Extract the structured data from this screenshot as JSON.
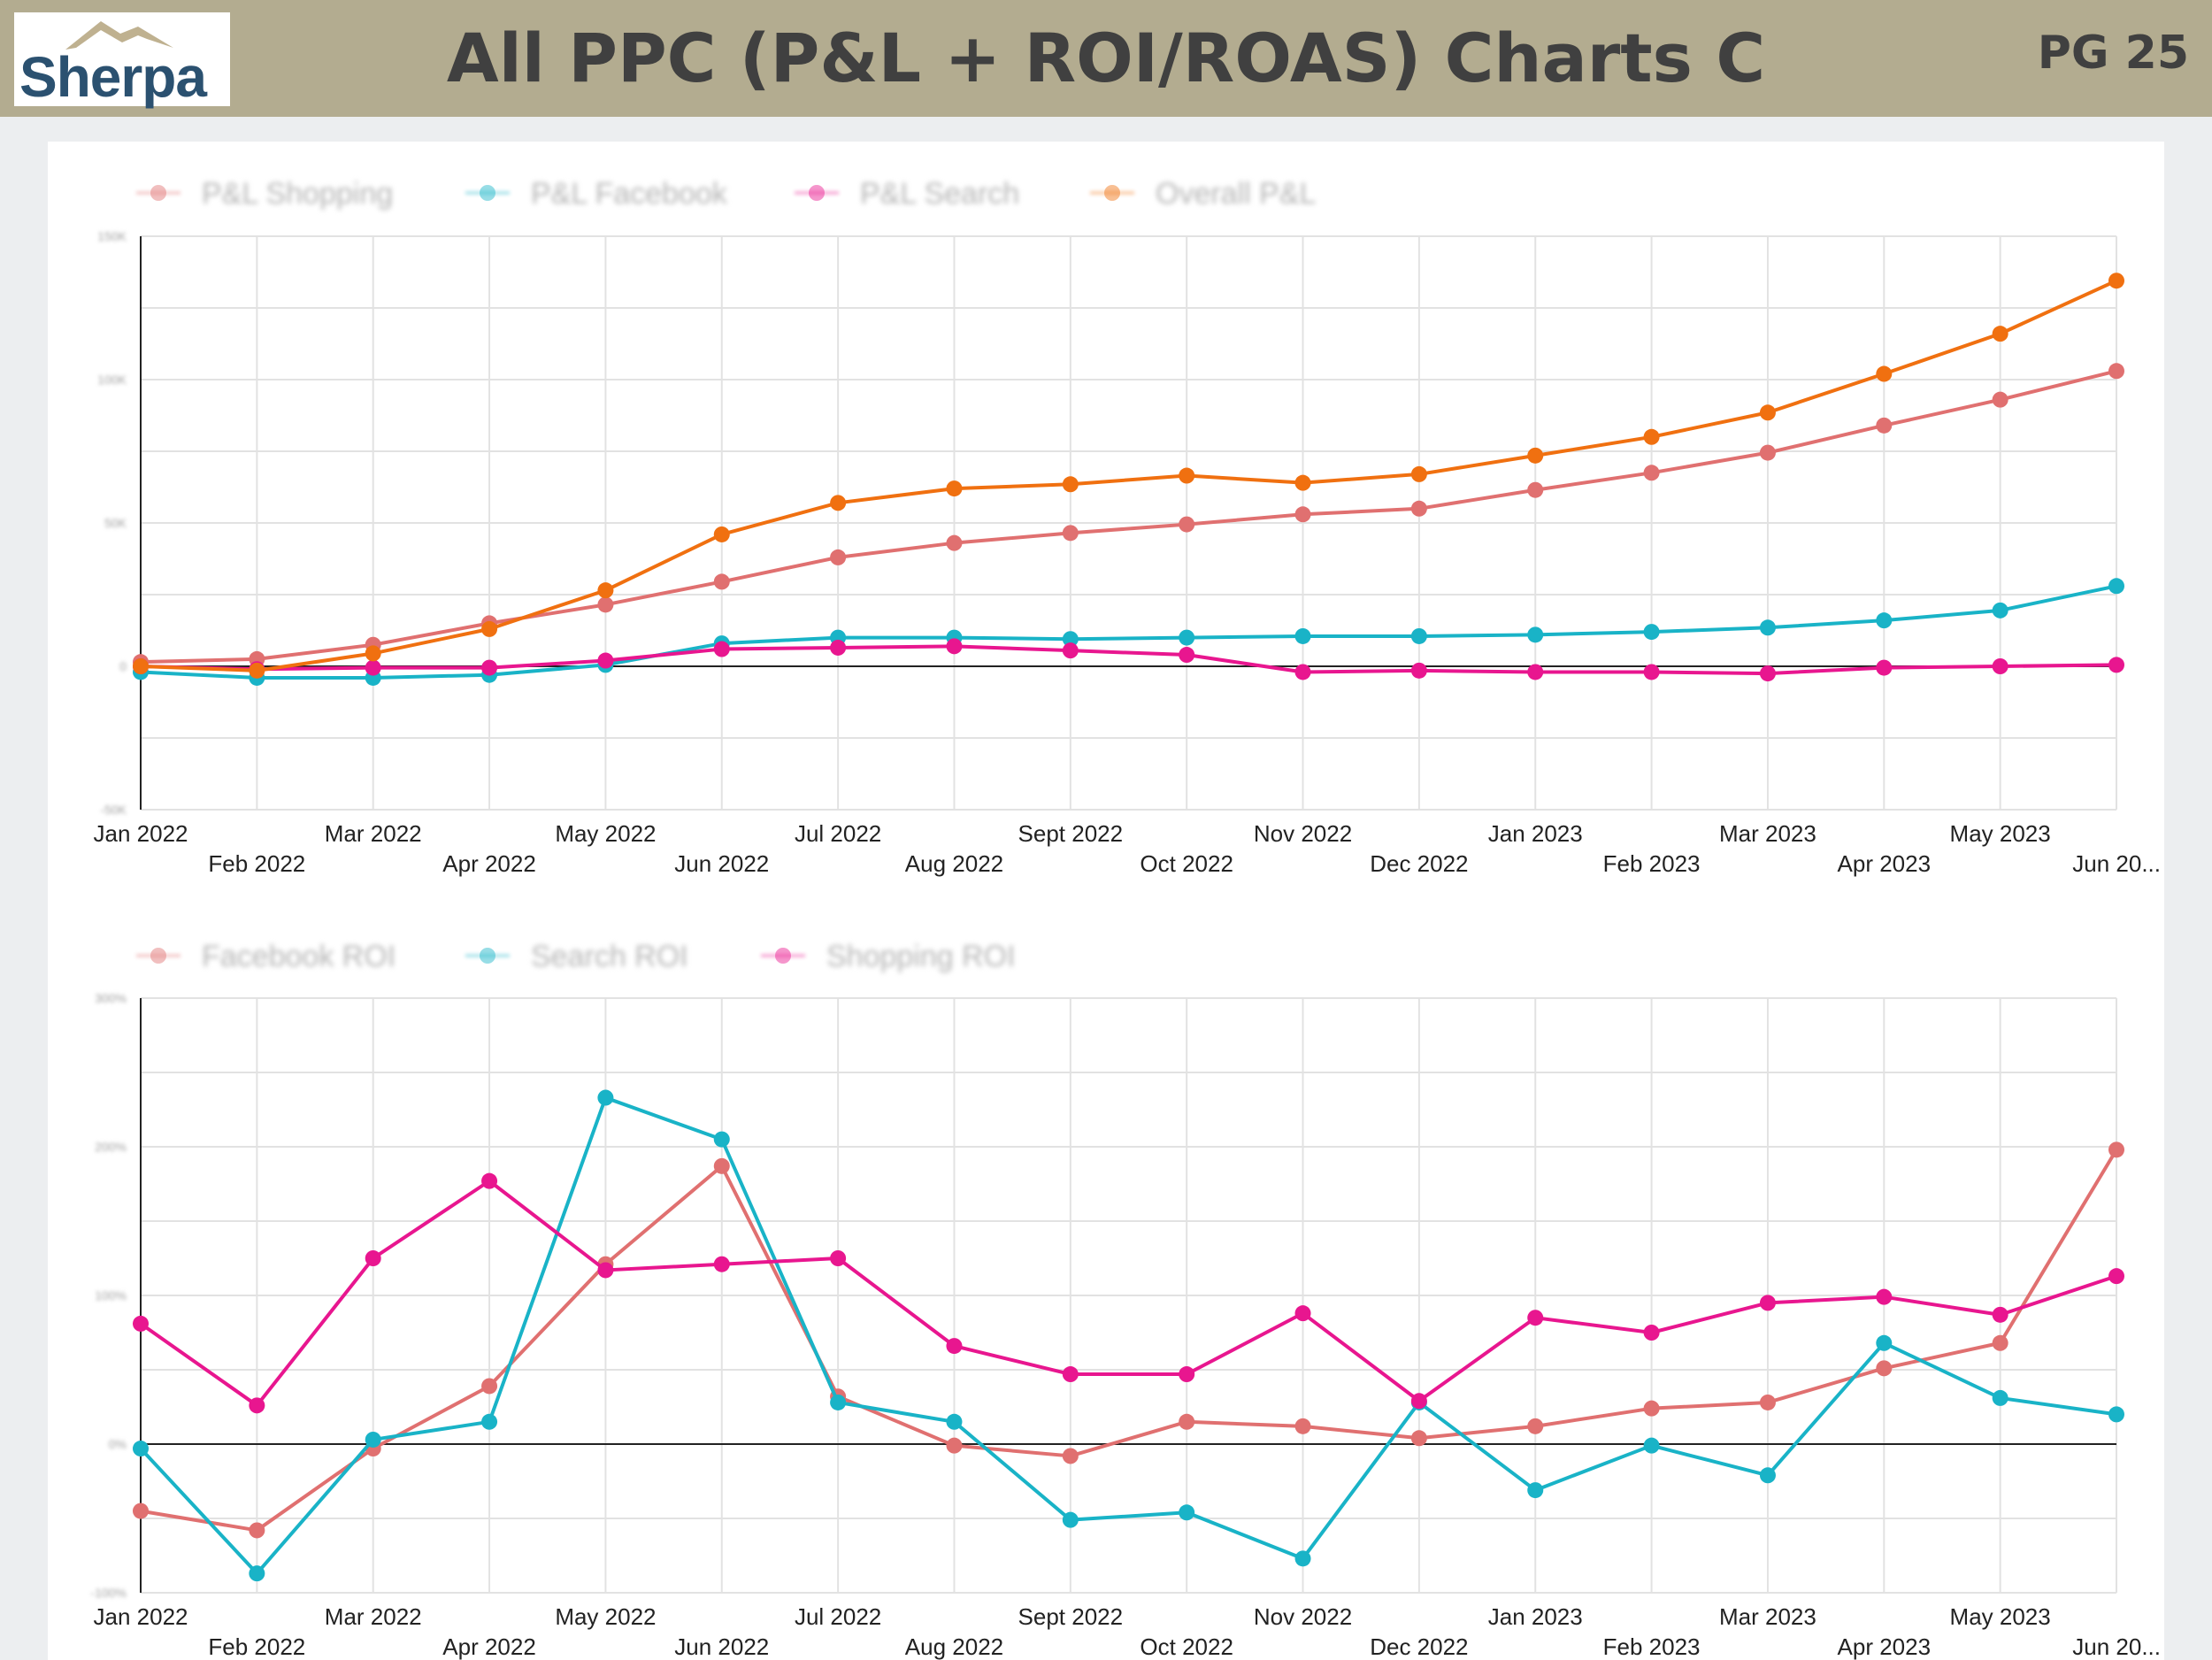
{
  "header": {
    "logo_text": "Sherpa",
    "title": "All PPC (P&L + ROI/ROAS) Charts C",
    "page": "PG 25"
  },
  "chart_data": [
    {
      "type": "line",
      "title": "",
      "x": [
        "Jan 2022",
        "Feb 2022",
        "Mar 2022",
        "Apr 2022",
        "May 2022",
        "Jun 2022",
        "Jul 2022",
        "Aug 2022",
        "Sept 2022",
        "Oct 2022",
        "Nov 2022",
        "Dec 2022",
        "Jan 2023",
        "Feb 2023",
        "Mar 2023",
        "Apr 2023",
        "May 2023",
        "Jun 20..."
      ],
      "ylim": [
        -50,
        150
      ],
      "y_ticks": [
        "-50K",
        "0",
        "50K",
        "100K",
        "150K"
      ],
      "grid": true,
      "legend": "top-left",
      "series": [
        {
          "name": "P&L Shopping",
          "color": "#e07070",
          "values": [
            1.5,
            2.5,
            7.5,
            15,
            21.5,
            29.5,
            38,
            43,
            46.5,
            49.5,
            53,
            55,
            61.5,
            67.5,
            74.5,
            84,
            93,
            103
          ]
        },
        {
          "name": "P&L Facebook",
          "color": "#19b3c7",
          "values": [
            -2,
            -4,
            -4,
            -3,
            0.5,
            8,
            10,
            10,
            9.5,
            10,
            10.5,
            10.5,
            11,
            12,
            13.5,
            16,
            19.5,
            28
          ]
        },
        {
          "name": "P&L Search",
          "color": "#e8168f",
          "values": [
            0,
            -1,
            -0.5,
            -0.5,
            2,
            6,
            6.5,
            7,
            5.5,
            4,
            -2,
            -1.5,
            -2,
            -2,
            -2.5,
            -0.5,
            0,
            0.5
          ]
        },
        {
          "name": "Overall P&L",
          "color": "#f07010",
          "values": [
            0,
            -1.5,
            4.5,
            13,
            26.5,
            46,
            57,
            62,
            63.5,
            66.5,
            64,
            67,
            73.5,
            80,
            88.5,
            102,
            116,
            134.5
          ]
        }
      ]
    },
    {
      "type": "line",
      "title": "",
      "x": [
        "Jan 2022",
        "Feb 2022",
        "Mar 2022",
        "Apr 2022",
        "May 2022",
        "Jun 2022",
        "Jul 2022",
        "Aug 2022",
        "Sept 2022",
        "Oct 2022",
        "Nov 2022",
        "Dec 2022",
        "Jan 2023",
        "Feb 2023",
        "Mar 2023",
        "Apr 2023",
        "May 2023",
        "Jun 20..."
      ],
      "ylim": [
        -100,
        300
      ],
      "y_ticks": [
        "-100%",
        "0%",
        "100%",
        "200%",
        "300%"
      ],
      "grid": true,
      "legend": "top-left",
      "series": [
        {
          "name": "Facebook ROI",
          "color": "#e07070",
          "values": [
            -45,
            -58,
            -3,
            39,
            121,
            187,
            32,
            -1,
            -8,
            15,
            12,
            4,
            12,
            24,
            28,
            51,
            68,
            198
          ]
        },
        {
          "name": "Search ROI",
          "color": "#19b3c7",
          "values": [
            -3,
            -87,
            3,
            15,
            233,
            205,
            28,
            15,
            -51,
            -46,
            -77,
            28,
            -31,
            -1,
            -21,
            68,
            31,
            20
          ]
        },
        {
          "name": "Shopping ROI",
          "color": "#e8168f",
          "values": [
            81,
            26,
            125,
            177,
            117,
            121,
            125,
            66,
            47,
            47,
            88,
            29,
            85,
            75,
            95,
            99,
            87,
            113
          ]
        }
      ]
    }
  ]
}
